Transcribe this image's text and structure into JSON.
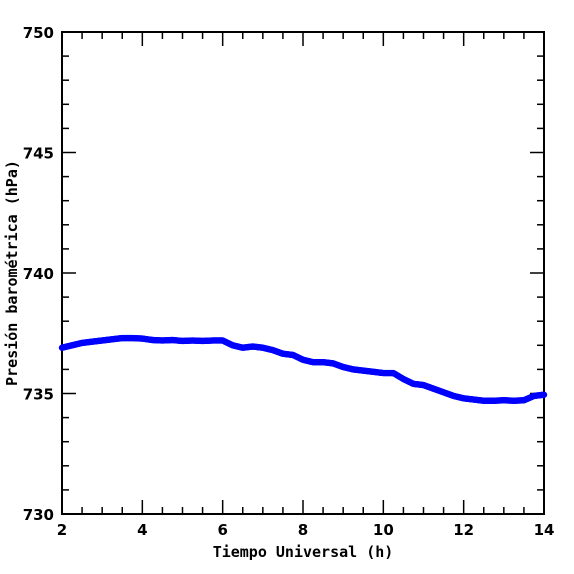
{
  "chart_data": {
    "type": "scatter",
    "title": "",
    "xlabel": "Tiempo Universal (h)",
    "ylabel": "Presión barométrica (hPa)",
    "xlim": [
      2,
      14
    ],
    "ylim": [
      730,
      750
    ],
    "x_ticks": [
      2,
      4,
      6,
      8,
      10,
      12,
      14
    ],
    "y_ticks": [
      730,
      735,
      740,
      745,
      750
    ],
    "x_tick_labels": [
      "2",
      "4",
      "6",
      "8",
      "10",
      "12",
      "14"
    ],
    "y_tick_labels": [
      "730",
      "735",
      "740",
      "745",
      "750"
    ],
    "grid": false,
    "legend": "none",
    "color": "#0000ff",
    "series": [
      {
        "x": [
          2.0,
          2.25,
          2.5,
          2.75,
          3.0,
          3.25,
          3.5,
          3.75,
          4.0,
          4.25,
          4.5,
          4.75,
          5.0,
          5.25,
          5.5,
          5.75,
          6.0,
          6.25,
          6.5,
          6.75,
          7.0,
          7.25,
          7.5,
          7.75,
          8.0,
          8.25,
          8.5,
          8.75,
          9.0,
          9.25,
          9.5,
          9.75,
          10.0,
          10.25,
          10.5,
          10.75,
          11.0,
          11.25,
          11.5,
          11.75,
          12.0,
          12.25,
          12.5,
          12.75,
          13.0,
          13.25,
          13.5,
          13.75,
          14.0
        ],
        "y": [
          736.9,
          737.0,
          737.1,
          737.15,
          737.2,
          737.25,
          737.3,
          737.3,
          737.28,
          737.22,
          737.2,
          737.22,
          737.18,
          737.2,
          737.18,
          737.2,
          737.2,
          737.0,
          736.9,
          736.95,
          736.9,
          736.8,
          736.65,
          736.6,
          736.4,
          736.3,
          736.3,
          736.25,
          736.1,
          736.0,
          735.95,
          735.9,
          735.85,
          735.85,
          735.6,
          735.4,
          735.35,
          735.2,
          735.05,
          734.9,
          734.8,
          734.75,
          734.7,
          734.7,
          734.72,
          734.7,
          734.72,
          734.9,
          734.95
        ]
      }
    ]
  }
}
